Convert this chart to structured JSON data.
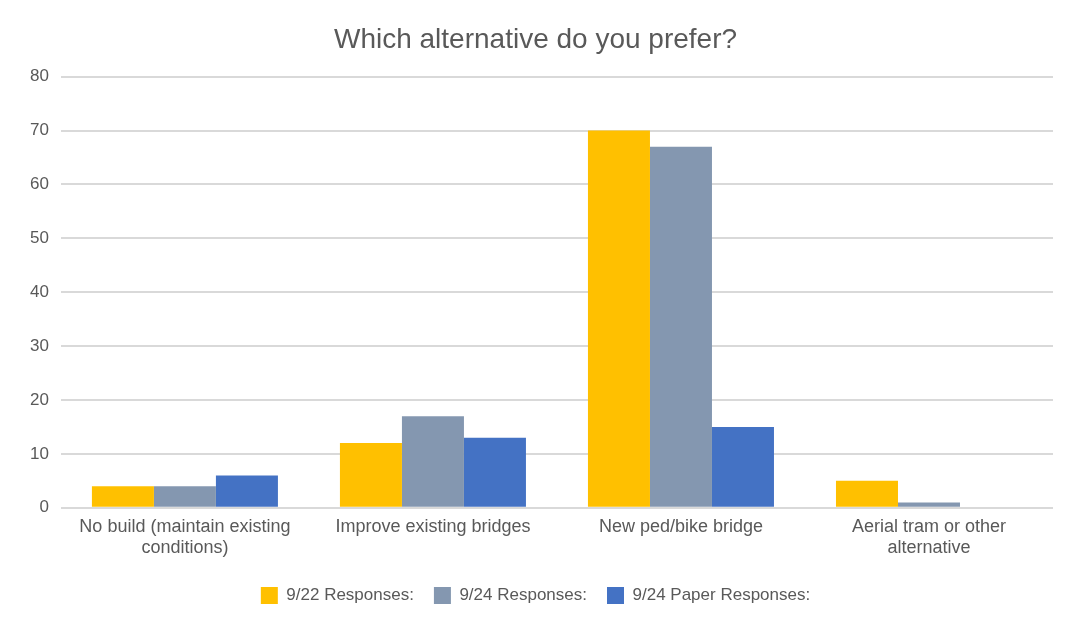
{
  "chart_data": {
    "type": "bar",
    "title": "Which alternative do you prefer?",
    "categories": [
      "No build (maintain existing conditions)",
      "Improve existing bridges",
      "New ped/bike bridge",
      "Aerial tram or other alternative"
    ],
    "series": [
      {
        "name": "9/22 Responses:",
        "color": "#ffc000",
        "values": [
          4,
          12,
          70,
          5
        ]
      },
      {
        "name": "9/24 Responses:",
        "color": "#8497b0",
        "values": [
          4,
          17,
          67,
          1
        ]
      },
      {
        "name": "9/24 Paper Responses:",
        "color": "#4472c4",
        "values": [
          6,
          13,
          15,
          0
        ]
      }
    ],
    "ylim": [
      0,
      80
    ],
    "yticks": [
      0,
      10,
      20,
      30,
      40,
      50,
      60,
      70,
      80
    ],
    "grid": "y",
    "legend": "bottom"
  }
}
